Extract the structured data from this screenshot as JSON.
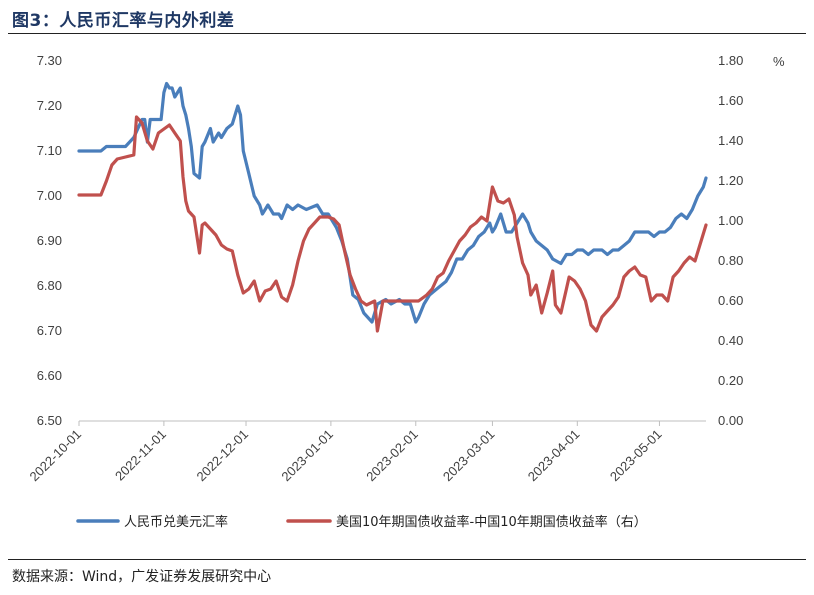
{
  "figure": {
    "title": "图3：人民币汇率与内外利差",
    "source": "数据来源：Wind，广发证券发展研究中心"
  },
  "chart_data": {
    "type": "line",
    "title": "",
    "left_axis": {
      "min": 6.5,
      "max": 7.3,
      "ticks": [
        "6.50",
        "6.60",
        "6.70",
        "6.80",
        "6.90",
        "7.00",
        "7.10",
        "7.20",
        "7.30"
      ]
    },
    "right_axis": {
      "min": 0.0,
      "max": 1.8,
      "unit": "%",
      "ticks": [
        "0.00",
        "0.20",
        "0.40",
        "0.60",
        "0.80",
        "1.00",
        "1.20",
        "1.40",
        "1.60",
        "1.80"
      ]
    },
    "x_start": "2022-10-01",
    "x_end": "2023-05-18",
    "x_ticks": [
      "2022-10-01",
      "2022-11-01",
      "2022-12-01",
      "2023-01-01",
      "2023-02-01",
      "2023-03-01",
      "2023-04-01",
      "2023-05-01"
    ],
    "grid": false,
    "legend_position": "bottom",
    "series": [
      {
        "name": "人民币兑美元汇率",
        "axis": "left",
        "color": "#4a7ebb",
        "points": [
          [
            "2022-10-01",
            7.1
          ],
          [
            "2022-10-09",
            7.1
          ],
          [
            "2022-10-11",
            7.11
          ],
          [
            "2022-10-18",
            7.11
          ],
          [
            "2022-10-21",
            7.13
          ],
          [
            "2022-10-24",
            7.17
          ],
          [
            "2022-10-25",
            7.17
          ],
          [
            "2022-10-26",
            7.12
          ],
          [
            "2022-10-27",
            7.17
          ],
          [
            "2022-10-31",
            7.17
          ],
          [
            "2022-11-01",
            7.23
          ],
          [
            "2022-11-02",
            7.25
          ],
          [
            "2022-11-03",
            7.24
          ],
          [
            "2022-11-04",
            7.24
          ],
          [
            "2022-11-05",
            7.22
          ],
          [
            "2022-11-07",
            7.24
          ],
          [
            "2022-11-08",
            7.2
          ],
          [
            "2022-11-09",
            7.18
          ],
          [
            "2022-11-10",
            7.15
          ],
          [
            "2022-11-11",
            7.11
          ],
          [
            "2022-11-12",
            7.05
          ],
          [
            "2022-11-14",
            7.04
          ],
          [
            "2022-11-15",
            7.11
          ],
          [
            "2022-11-16",
            7.12
          ],
          [
            "2022-11-18",
            7.15
          ],
          [
            "2022-11-19",
            7.12
          ],
          [
            "2022-11-21",
            7.14
          ],
          [
            "2022-11-22",
            7.13
          ],
          [
            "2022-11-24",
            7.15
          ],
          [
            "2022-11-26",
            7.16
          ],
          [
            "2022-11-28",
            7.2
          ],
          [
            "2022-11-29",
            7.18
          ],
          [
            "2022-11-30",
            7.1
          ],
          [
            "2022-12-02",
            7.05
          ],
          [
            "2022-12-04",
            7.0
          ],
          [
            "2022-12-06",
            6.98
          ],
          [
            "2022-12-07",
            6.96
          ],
          [
            "2022-12-08",
            6.97
          ],
          [
            "2022-12-09",
            6.98
          ],
          [
            "2022-12-11",
            6.96
          ],
          [
            "2022-12-13",
            6.96
          ],
          [
            "2022-12-14",
            6.95
          ],
          [
            "2022-12-16",
            6.98
          ],
          [
            "2022-12-18",
            6.97
          ],
          [
            "2022-12-20",
            6.98
          ],
          [
            "2022-12-23",
            6.97
          ],
          [
            "2022-12-27",
            6.98
          ],
          [
            "2022-12-29",
            6.96
          ],
          [
            "2022-12-31",
            6.96
          ],
          [
            "2023-01-03",
            6.93
          ],
          [
            "2023-01-05",
            6.9
          ],
          [
            "2023-01-07",
            6.86
          ],
          [
            "2023-01-09",
            6.78
          ],
          [
            "2023-01-11",
            6.77
          ],
          [
            "2023-01-13",
            6.74
          ],
          [
            "2023-01-16",
            6.72
          ],
          [
            "2023-01-18",
            6.76
          ],
          [
            "2023-01-21",
            6.77
          ],
          [
            "2023-01-23",
            6.76
          ],
          [
            "2023-01-26",
            6.77
          ],
          [
            "2023-01-28",
            6.76
          ],
          [
            "2023-01-30",
            6.76
          ],
          [
            "2023-02-01",
            6.72
          ],
          [
            "2023-02-02",
            6.73
          ],
          [
            "2023-02-04",
            6.76
          ],
          [
            "2023-02-06",
            6.78
          ],
          [
            "2023-02-08",
            6.79
          ],
          [
            "2023-02-10",
            6.8
          ],
          [
            "2023-02-12",
            6.81
          ],
          [
            "2023-02-14",
            6.83
          ],
          [
            "2023-02-16",
            6.86
          ],
          [
            "2023-02-18",
            6.86
          ],
          [
            "2023-02-20",
            6.88
          ],
          [
            "2023-02-22",
            6.89
          ],
          [
            "2023-02-24",
            6.91
          ],
          [
            "2023-02-26",
            6.92
          ],
          [
            "2023-02-28",
            6.94
          ],
          [
            "2023-03-01",
            6.92
          ],
          [
            "2023-03-02",
            6.93
          ],
          [
            "2023-03-04",
            6.96
          ],
          [
            "2023-03-06",
            6.92
          ],
          [
            "2023-03-08",
            6.92
          ],
          [
            "2023-03-10",
            6.94
          ],
          [
            "2023-03-12",
            6.96
          ],
          [
            "2023-03-14",
            6.94
          ],
          [
            "2023-03-15",
            6.92
          ],
          [
            "2023-03-17",
            6.9
          ],
          [
            "2023-03-19",
            6.89
          ],
          [
            "2023-03-21",
            6.88
          ],
          [
            "2023-03-23",
            6.86
          ],
          [
            "2023-03-26",
            6.85
          ],
          [
            "2023-03-28",
            6.87
          ],
          [
            "2023-03-30",
            6.87
          ],
          [
            "2023-04-01",
            6.88
          ],
          [
            "2023-04-03",
            6.88
          ],
          [
            "2023-04-05",
            6.87
          ],
          [
            "2023-04-07",
            6.88
          ],
          [
            "2023-04-10",
            6.88
          ],
          [
            "2023-04-12",
            6.87
          ],
          [
            "2023-04-14",
            6.88
          ],
          [
            "2023-04-16",
            6.88
          ],
          [
            "2023-04-18",
            6.89
          ],
          [
            "2023-04-20",
            6.9
          ],
          [
            "2023-04-22",
            6.92
          ],
          [
            "2023-04-25",
            6.92
          ],
          [
            "2023-04-27",
            6.92
          ],
          [
            "2023-04-29",
            6.91
          ],
          [
            "2023-05-01",
            6.92
          ],
          [
            "2023-05-03",
            6.92
          ],
          [
            "2023-05-05",
            6.93
          ],
          [
            "2023-05-07",
            6.95
          ],
          [
            "2023-05-09",
            6.96
          ],
          [
            "2023-05-11",
            6.95
          ],
          [
            "2023-05-13",
            6.97
          ],
          [
            "2023-05-15",
            7.0
          ],
          [
            "2023-05-17",
            7.02
          ],
          [
            "2023-05-18",
            7.04
          ]
        ]
      },
      {
        "name": "美国10年期国债收益率-中国10年期国债收益率（右）",
        "axis": "right",
        "color": "#c0504d",
        "points": [
          [
            "2022-10-01",
            1.13
          ],
          [
            "2022-10-09",
            1.13
          ],
          [
            "2022-10-11",
            1.2
          ],
          [
            "2022-10-13",
            1.28
          ],
          [
            "2022-10-15",
            1.31
          ],
          [
            "2022-10-18",
            1.32
          ],
          [
            "2022-10-21",
            1.33
          ],
          [
            "2022-10-22",
            1.52
          ],
          [
            "2022-10-24",
            1.49
          ],
          [
            "2022-10-26",
            1.4
          ],
          [
            "2022-10-28",
            1.36
          ],
          [
            "2022-10-30",
            1.44
          ],
          [
            "2022-11-01",
            1.46
          ],
          [
            "2022-11-03",
            1.48
          ],
          [
            "2022-11-05",
            1.44
          ],
          [
            "2022-11-07",
            1.4
          ],
          [
            "2022-11-08",
            1.22
          ],
          [
            "2022-11-09",
            1.1
          ],
          [
            "2022-11-10",
            1.05
          ],
          [
            "2022-11-12",
            1.02
          ],
          [
            "2022-11-14",
            0.84
          ],
          [
            "2022-11-15",
            0.98
          ],
          [
            "2022-11-16",
            0.99
          ],
          [
            "2022-11-18",
            0.96
          ],
          [
            "2022-11-20",
            0.93
          ],
          [
            "2022-11-22",
            0.88
          ],
          [
            "2022-11-24",
            0.86
          ],
          [
            "2022-11-26",
            0.85
          ],
          [
            "2022-11-28",
            0.73
          ],
          [
            "2022-11-30",
            0.64
          ],
          [
            "2022-12-02",
            0.66
          ],
          [
            "2022-12-04",
            0.7
          ],
          [
            "2022-12-06",
            0.6
          ],
          [
            "2022-12-08",
            0.65
          ],
          [
            "2022-12-10",
            0.66
          ],
          [
            "2022-12-12",
            0.7
          ],
          [
            "2022-12-14",
            0.62
          ],
          [
            "2022-12-16",
            0.6
          ],
          [
            "2022-12-18",
            0.68
          ],
          [
            "2022-12-20",
            0.8
          ],
          [
            "2022-12-22",
            0.9
          ],
          [
            "2022-12-24",
            0.96
          ],
          [
            "2022-12-26",
            0.99
          ],
          [
            "2022-12-28",
            1.02
          ],
          [
            "2022-12-31",
            1.02
          ],
          [
            "2023-01-02",
            1.01
          ],
          [
            "2023-01-04",
            0.98
          ],
          [
            "2023-01-06",
            0.85
          ],
          [
            "2023-01-08",
            0.73
          ],
          [
            "2023-01-10",
            0.66
          ],
          [
            "2023-01-12",
            0.6
          ],
          [
            "2023-01-14",
            0.58
          ],
          [
            "2023-01-17",
            0.6
          ],
          [
            "2023-01-18",
            0.45
          ],
          [
            "2023-01-20",
            0.6
          ],
          [
            "2023-01-24",
            0.6
          ],
          [
            "2023-01-28",
            0.6
          ],
          [
            "2023-01-31",
            0.6
          ],
          [
            "2023-02-02",
            0.6
          ],
          [
            "2023-02-05",
            0.63
          ],
          [
            "2023-02-07",
            0.66
          ],
          [
            "2023-02-09",
            0.72
          ],
          [
            "2023-02-11",
            0.74
          ],
          [
            "2023-02-13",
            0.8
          ],
          [
            "2023-02-15",
            0.85
          ],
          [
            "2023-02-17",
            0.9
          ],
          [
            "2023-02-19",
            0.93
          ],
          [
            "2023-02-21",
            0.97
          ],
          [
            "2023-02-23",
            0.99
          ],
          [
            "2023-02-25",
            1.02
          ],
          [
            "2023-02-27",
            1.0
          ],
          [
            "2023-03-01",
            1.17
          ],
          [
            "2023-03-03",
            1.1
          ],
          [
            "2023-03-05",
            1.09
          ],
          [
            "2023-03-07",
            1.11
          ],
          [
            "2023-03-09",
            1.03
          ],
          [
            "2023-03-10",
            0.92
          ],
          [
            "2023-03-12",
            0.79
          ],
          [
            "2023-03-14",
            0.73
          ],
          [
            "2023-03-15",
            0.63
          ],
          [
            "2023-03-17",
            0.68
          ],
          [
            "2023-03-19",
            0.54
          ],
          [
            "2023-03-21",
            0.64
          ],
          [
            "2023-03-23",
            0.75
          ],
          [
            "2023-03-24",
            0.58
          ],
          [
            "2023-03-26",
            0.54
          ],
          [
            "2023-03-28",
            0.66
          ],
          [
            "2023-03-29",
            0.72
          ],
          [
            "2023-03-31",
            0.7
          ],
          [
            "2023-04-02",
            0.66
          ],
          [
            "2023-04-04",
            0.6
          ],
          [
            "2023-04-06",
            0.48
          ],
          [
            "2023-04-08",
            0.45
          ],
          [
            "2023-04-10",
            0.52
          ],
          [
            "2023-04-12",
            0.55
          ],
          [
            "2023-04-14",
            0.58
          ],
          [
            "2023-04-16",
            0.62
          ],
          [
            "2023-04-18",
            0.72
          ],
          [
            "2023-04-20",
            0.75
          ],
          [
            "2023-04-22",
            0.77
          ],
          [
            "2023-04-24",
            0.73
          ],
          [
            "2023-04-26",
            0.72
          ],
          [
            "2023-04-28",
            0.6
          ],
          [
            "2023-04-30",
            0.63
          ],
          [
            "2023-05-02",
            0.63
          ],
          [
            "2023-05-04",
            0.6
          ],
          [
            "2023-05-06",
            0.72
          ],
          [
            "2023-05-08",
            0.75
          ],
          [
            "2023-05-10",
            0.79
          ],
          [
            "2023-05-12",
            0.82
          ],
          [
            "2023-05-14",
            0.8
          ],
          [
            "2023-05-16",
            0.89
          ],
          [
            "2023-05-18",
            0.98
          ]
        ]
      }
    ]
  }
}
